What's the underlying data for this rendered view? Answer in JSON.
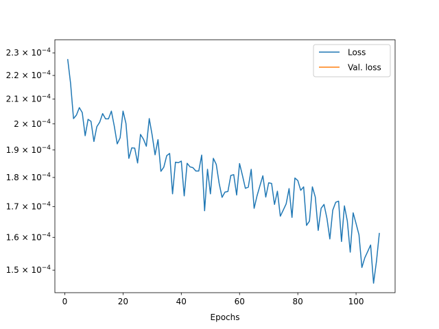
{
  "chart_data": {
    "type": "line",
    "title": "",
    "xlabel": "Epochs",
    "ylabel": "",
    "xlim": [
      -3.4,
      113.4
    ],
    "ylim": [
      0.0001435,
      0.000236
    ],
    "yscale": "log",
    "grid": false,
    "legend_position": "top-right",
    "x_ticks": [
      0,
      20,
      40,
      60,
      80,
      100
    ],
    "x_tick_labels": [
      "0",
      "20",
      "40",
      "60",
      "80",
      "100"
    ],
    "y_ticks": [
      0.00015,
      0.00016,
      0.00017,
      0.00018,
      0.00019,
      0.0002,
      0.00021,
      0.00022,
      0.00023
    ],
    "y_tick_labels": [
      {
        "mantissa": "1.5 × 10",
        "exp": "−4"
      },
      {
        "mantissa": "1.6 × 10",
        "exp": "−4"
      },
      {
        "mantissa": "1.7 × 10",
        "exp": "−4"
      },
      {
        "mantissa": "1.8 × 10",
        "exp": "−4"
      },
      {
        "mantissa": "1.9 × 10",
        "exp": "−4"
      },
      {
        "mantissa": "2 × 10",
        "exp": "−4"
      },
      {
        "mantissa": "2.1 × 10",
        "exp": "−4"
      },
      {
        "mantissa": "2.2 × 10",
        "exp": "−4"
      },
      {
        "mantissa": "2.3 × 10",
        "exp": "−4"
      }
    ],
    "series": [
      {
        "name": "Loss",
        "color": "#1f77b4",
        "x": [
          1,
          2,
          3,
          4,
          5,
          6,
          7,
          8,
          9,
          10,
          11,
          12,
          13,
          14,
          15,
          16,
          17,
          18,
          19,
          20,
          21,
          22,
          23,
          24,
          25,
          26,
          27,
          28,
          29,
          30,
          31,
          32,
          33,
          34,
          35,
          36,
          37,
          38,
          39,
          40,
          41,
          42,
          43,
          44,
          45,
          46,
          47,
          48,
          49,
          50,
          51,
          52,
          53,
          54,
          55,
          56,
          57,
          58,
          59,
          60,
          61,
          62,
          63,
          64,
          65,
          66,
          67,
          68,
          69,
          70,
          71,
          72,
          73,
          74,
          75,
          76,
          77,
          78,
          79,
          80,
          81,
          82,
          83,
          84,
          85,
          86,
          87,
          88,
          89,
          90,
          91,
          92,
          93,
          94,
          95,
          96,
          97,
          98,
          99,
          100,
          101,
          102,
          103,
          104,
          105,
          106,
          107,
          108
        ],
        "y": [
          0.0002272,
          0.0002165,
          0.0002021,
          0.0002035,
          0.0002065,
          0.0002045,
          0.0001954,
          0.0002018,
          0.000201,
          0.0001932,
          0.0001989,
          0.0002007,
          0.0002041,
          0.000202,
          0.000202,
          0.0002051,
          0.0001991,
          0.0001923,
          0.0001946,
          0.0002051,
          0.0002002,
          0.0001869,
          0.0001908,
          0.0001907,
          0.0001852,
          0.0001959,
          0.0001941,
          0.0001914,
          0.0002021,
          0.0001956,
          0.0001882,
          0.0001939,
          0.0001822,
          0.0001837,
          0.0001879,
          0.0001887,
          0.0001743,
          0.0001855,
          0.0001853,
          0.0001859,
          0.0001736,
          0.0001851,
          0.0001838,
          0.0001835,
          0.0001823,
          0.0001823,
          0.0001881,
          0.0001686,
          0.0001829,
          0.0001743,
          0.0001869,
          0.0001847,
          0.0001779,
          0.0001731,
          0.0001749,
          0.0001751,
          0.0001807,
          0.000181,
          0.0001739,
          0.000185,
          0.0001807,
          0.0001762,
          0.0001766,
          0.0001829,
          0.0001694,
          0.0001736,
          0.0001771,
          0.0001806,
          0.0001732,
          0.0001781,
          0.0001779,
          0.0001707,
          0.0001752,
          0.0001668,
          0.0001688,
          0.0001709,
          0.0001761,
          0.0001664,
          0.0001798,
          0.0001789,
          0.0001755,
          0.0001767,
          0.0001638,
          0.0001652,
          0.0001767,
          0.0001732,
          0.0001622,
          0.0001694,
          0.0001707,
          0.0001661,
          0.0001595,
          0.0001688,
          0.0001714,
          0.0001718,
          0.0001587,
          0.0001702,
          0.0001652,
          0.0001554,
          0.0001679,
          0.0001644,
          0.0001608,
          0.0001508,
          0.0001537,
          0.0001556,
          0.0001576,
          0.0001462,
          0.0001526,
          0.0001614
        ]
      },
      {
        "name": "Val. loss",
        "color": "#ff7f0e",
        "x": [],
        "y": []
      }
    ]
  }
}
